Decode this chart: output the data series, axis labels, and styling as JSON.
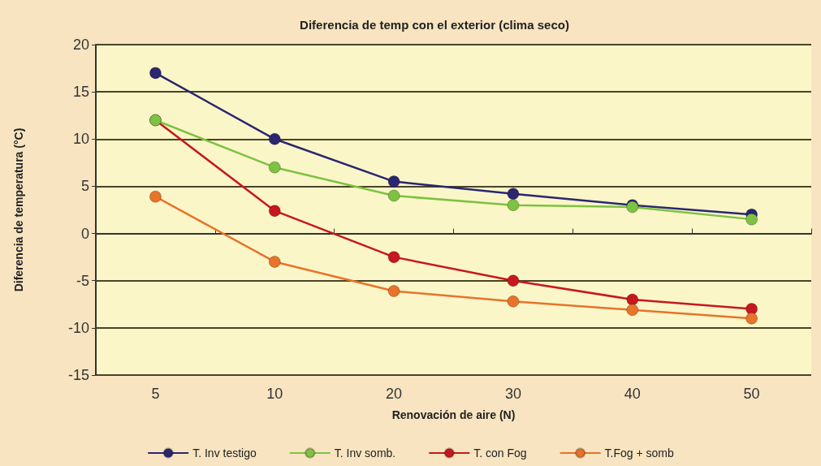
{
  "chart_data": {
    "type": "line",
    "title": "Diferencia de temp con el exterior (clima seco)",
    "xlabel": "Renovación de aire (N)",
    "ylabel": "Diferencia de temperatura (°C)",
    "categories": [
      "5",
      "10",
      "20",
      "30",
      "40",
      "50"
    ],
    "series": [
      {
        "name": "T. Inv testigo",
        "color": "#2a2670",
        "values": [
          17,
          10,
          5.5,
          4.2,
          3,
          2
        ]
      },
      {
        "name": "T. Inv somb.",
        "color": "#7dc242",
        "values": [
          12,
          7,
          4,
          3,
          2.8,
          1.5
        ]
      },
      {
        "name": "T. con Fog",
        "color": "#c8171e",
        "values": [
          12,
          2.4,
          -2.5,
          -5,
          -7,
          -8
        ]
      },
      {
        "name": "T.Fog + somb",
        "color": "#e8732a",
        "values": [
          3.9,
          -3,
          -6.1,
          -7.2,
          -8.1,
          -9
        ]
      }
    ],
    "ylim": [
      -15,
      20
    ],
    "yticks": [
      -15,
      -10,
      -5,
      0,
      5,
      10,
      15,
      20
    ],
    "grid": "y",
    "legend": "bottom",
    "marker": "circle",
    "line_style": "solid"
  }
}
